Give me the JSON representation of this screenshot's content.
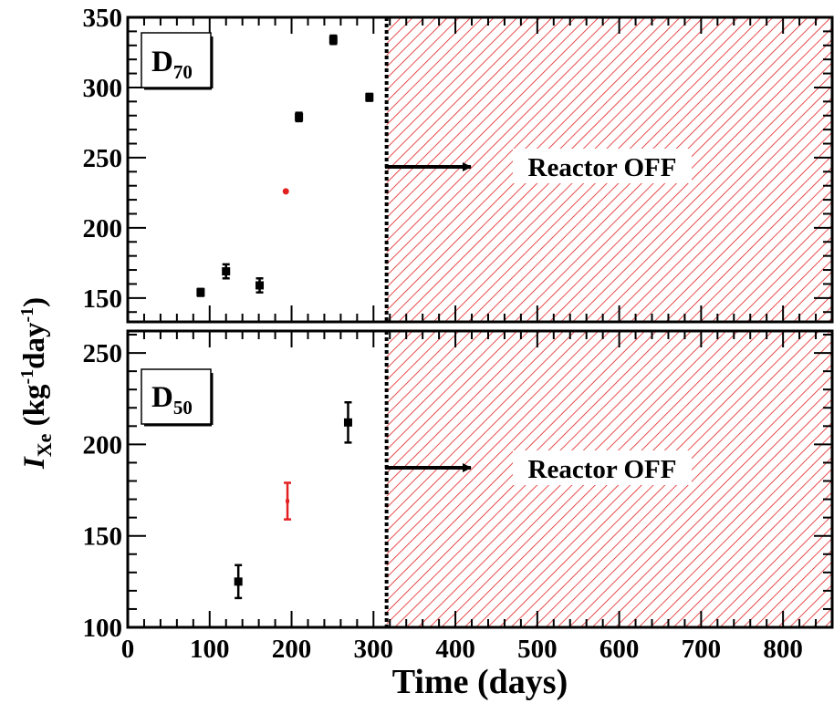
{
  "chart_data": [
    {
      "type": "scatter",
      "panel_label": "D",
      "panel_label_sub": "70",
      "xlim": [
        0,
        860
      ],
      "ylim": [
        133,
        350
      ],
      "yticks": [
        150,
        200,
        250,
        300,
        350
      ],
      "reactor_off_x": 316,
      "annotation": "Reactor OFF",
      "series": [
        {
          "color": "#000000",
          "marker": "square",
          "points": [
            {
              "x": 89,
              "y": 154,
              "yerr": 2.5
            },
            {
              "x": 120,
              "y": 169,
              "yerr": 5
            },
            {
              "x": 161,
              "y": 159,
              "yerr": 5
            },
            {
              "x": 209,
              "y": 279,
              "yerr": 3
            },
            {
              "x": 251,
              "y": 334,
              "yerr": 3
            },
            {
              "x": 295,
              "y": 293,
              "yerr": 2.5
            }
          ]
        },
        {
          "color": "#e32020",
          "marker": "circle",
          "points": [
            {
              "x": 193,
              "y": 226,
              "yerr": 0
            }
          ]
        }
      ]
    },
    {
      "type": "scatter",
      "panel_label": "D",
      "panel_label_sub": "50",
      "xlim": [
        0,
        860
      ],
      "ylim": [
        100,
        262
      ],
      "yticks": [
        100,
        150,
        200,
        250
      ],
      "reactor_off_x": 316,
      "annotation": "Reactor OFF",
      "series": [
        {
          "color": "#000000",
          "marker": "square",
          "points": [
            {
              "x": 135,
              "y": 125,
              "yerr": 9
            },
            {
              "x": 269,
              "y": 212,
              "yerr": 11
            }
          ]
        },
        {
          "color": "#e32020",
          "marker": "bar",
          "points": [
            {
              "x": 195,
              "y": 169,
              "yerr": 10
            }
          ]
        }
      ]
    }
  ],
  "axes": {
    "ylabel": {
      "main": "I",
      "sub": "Xe",
      "paren_open": "(kg",
      "sup1": "-1",
      "mid": "day",
      "sup2": "-1",
      "paren_close": ")"
    },
    "xlabel": "Time (days)",
    "xticks": [
      0,
      100,
      200,
      300,
      400,
      500,
      600,
      700,
      800
    ]
  },
  "colors": {
    "hatch": "#e32020",
    "markers": "#000000",
    "highlight": "#e32020"
  }
}
